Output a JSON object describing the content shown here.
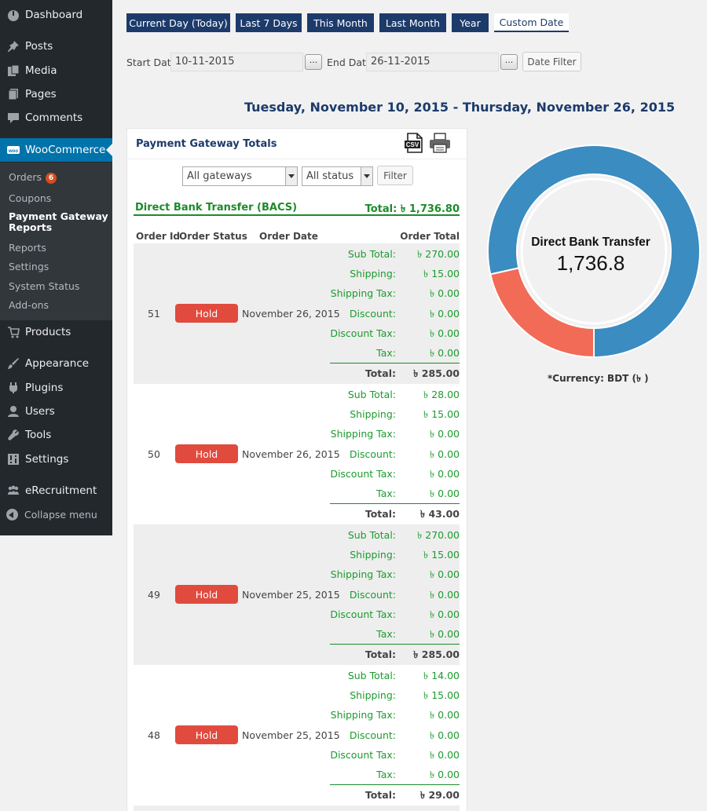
{
  "sidebar": {
    "items": [
      {
        "label": "Dashboard",
        "icon": "dashboard-icon"
      },
      {
        "label": "Posts",
        "icon": "pin-icon"
      },
      {
        "label": "Media",
        "icon": "media-icon"
      },
      {
        "label": "Pages",
        "icon": "pages-icon"
      },
      {
        "label": "Comments",
        "icon": "comment-icon"
      },
      {
        "label": "WooCommerce",
        "icon": "woocommerce-icon"
      },
      {
        "label": "Products",
        "icon": "cart-icon"
      },
      {
        "label": "Appearance",
        "icon": "brush-icon"
      },
      {
        "label": "Plugins",
        "icon": "plugin-icon"
      },
      {
        "label": "Users",
        "icon": "user-icon"
      },
      {
        "label": "Tools",
        "icon": "wrench-icon"
      },
      {
        "label": "Settings",
        "icon": "settings-icon"
      },
      {
        "label": "eRecruitment",
        "icon": "people-icon"
      }
    ],
    "submenu": {
      "orders": "Orders",
      "orders_count": "6",
      "coupons": "Coupons",
      "pg_reports_line1": "Payment Gateway",
      "pg_reports_line2": "Reports",
      "reports": "Reports",
      "settings": "Settings",
      "system_status": "System Status",
      "addons": "Add-ons"
    },
    "collapse": "Collapse menu"
  },
  "tabs": [
    "Current Day (Today)",
    "Last 7 Days",
    "This Month",
    "Last Month",
    "Year",
    "Custom Date"
  ],
  "active_tab": "Custom Date",
  "filters": {
    "start_label": "Start Date",
    "start_value": "10-11-2015",
    "end_label": "End Date",
    "end_value": "26-11-2015",
    "picker_label": "...",
    "date_filter_button": "Date Filter"
  },
  "range_title": "Tuesday, November 10, 2015 - Thursday, November 26, 2015",
  "panel": {
    "title": "Payment Gateway Totals",
    "csv_label": "CSV",
    "gateway_select": "All gateways",
    "status_select": "All status",
    "filter_button": "Filter",
    "gateway_name": "Direct Bank Transfer (BACS)",
    "gateway_total": "Total: ৳ 1,736.80",
    "columns": {
      "id": "Order Id",
      "status": "Order Status",
      "date": "Order Date",
      "total": "Order Total"
    }
  },
  "line_labels": {
    "sub_total": "Sub Total:",
    "shipping": "Shipping:",
    "shipping_tax": "Shipping Tax:",
    "discount": "Discount:",
    "discount_tax": "Discount Tax:",
    "tax": "Tax:",
    "total": "Total:"
  },
  "orders": [
    {
      "id": "51",
      "status": "Hold",
      "date": "November 26, 2015",
      "sub_total": "৳ 270.00",
      "shipping": "৳ 15.00",
      "shipping_tax": "৳ 0.00",
      "discount": "৳ 0.00",
      "discount_tax": "৳ 0.00",
      "tax": "৳ 0.00",
      "total": "৳ 285.00"
    },
    {
      "id": "50",
      "status": "Hold",
      "date": "November 26, 2015",
      "sub_total": "৳ 28.00",
      "shipping": "৳ 15.00",
      "shipping_tax": "৳ 0.00",
      "discount": "৳ 0.00",
      "discount_tax": "৳ 0.00",
      "tax": "৳ 0.00",
      "total": "৳ 43.00"
    },
    {
      "id": "49",
      "status": "Hold",
      "date": "November 25, 2015",
      "sub_total": "৳ 270.00",
      "shipping": "৳ 15.00",
      "shipping_tax": "৳ 0.00",
      "discount": "৳ 0.00",
      "discount_tax": "৳ 0.00",
      "tax": "৳ 0.00",
      "total": "৳ 285.00"
    },
    {
      "id": "48",
      "status": "Hold",
      "date": "November 25, 2015",
      "sub_total": "৳ 14.00",
      "shipping": "৳ 15.00",
      "shipping_tax": "৳ 0.00",
      "discount": "৳ 0.00",
      "discount_tax": "৳ 0.00",
      "tax": "৳ 0.00",
      "total": "৳ 29.00"
    }
  ],
  "chart": {
    "title": "Direct Bank Transfer",
    "value": "1,736.8",
    "segments": [
      {
        "color": "#3a8cc1",
        "fraction": 0.785
      },
      {
        "color": "#f26b56",
        "fraction": 0.215
      }
    ]
  },
  "currency": "*Currency:  BDT (৳ )"
}
